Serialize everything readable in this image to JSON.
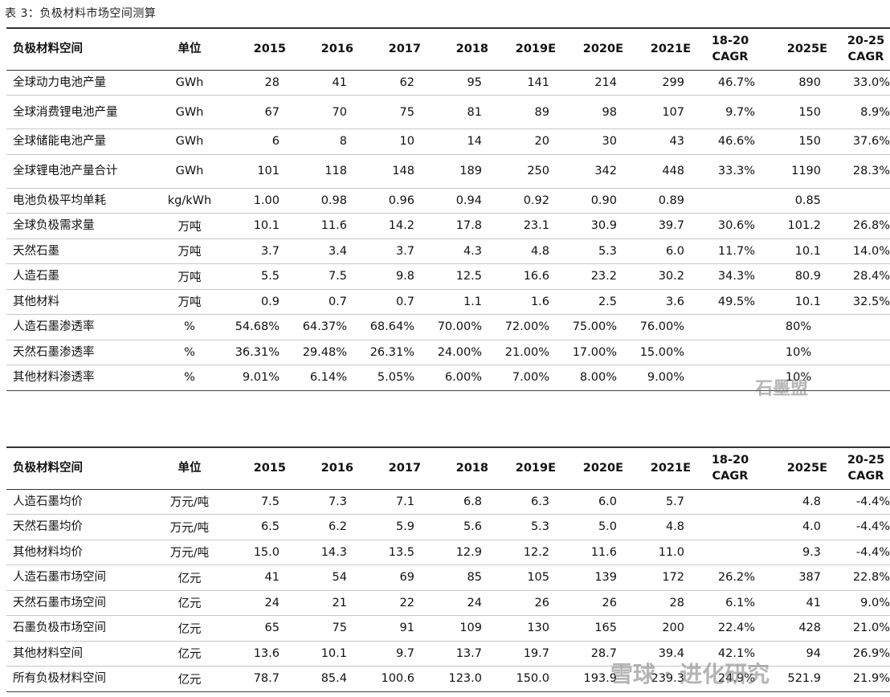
{
  "caption": "表 3：负极材料市场空间测算",
  "table1": {
    "headers": [
      "负极材料空间",
      "单位",
      "2015",
      "2016",
      "2017",
      "2018",
      "2019E",
      "2020E",
      "2021E",
      "18-20\nCAGR",
      "2025E",
      "20-25\nCAGR"
    ],
    "rows": [
      [
        "全球动力电池产量",
        "GWh",
        "28",
        "41",
        "62",
        "95",
        "141",
        "214",
        "299",
        "46.7%",
        "890",
        "33.0%"
      ],
      [
        "全球消费锂电池产量",
        "GWh",
        "67",
        "70",
        "75",
        "81",
        "89",
        "98",
        "107",
        "9.7%",
        "150",
        "8.9%"
      ],
      [
        "全球储能电池产量",
        "GWh",
        "6",
        "8",
        "10",
        "14",
        "20",
        "30",
        "43",
        "46.6%",
        "150",
        "37.6%"
      ],
      [
        "全球锂电池产量合计",
        "GWh",
        "101",
        "118",
        "148",
        "189",
        "250",
        "342",
        "448",
        "33.3%",
        "1190",
        "28.3%"
      ],
      [
        "电池负极平均单耗",
        "kg/kWh",
        "1.00",
        "0.98",
        "0.96",
        "0.94",
        "0.92",
        "0.90",
        "0.89",
        "",
        "0.85",
        ""
      ],
      [
        "全球负极需求量",
        "万吨",
        "10.1",
        "11.6",
        "14.2",
        "17.8",
        "23.1",
        "30.9",
        "39.7",
        "30.6%",
        "101.2",
        "26.8%"
      ],
      [
        "天然石墨",
        "万吨",
        "3.7",
        "3.4",
        "3.7",
        "4.3",
        "4.8",
        "5.3",
        "6.0",
        "11.7%",
        "10.1",
        "14.0%"
      ],
      [
        "人造石墨",
        "万吨",
        "5.5",
        "7.5",
        "9.8",
        "12.5",
        "16.6",
        "23.2",
        "30.2",
        "34.3%",
        "80.9",
        "28.4%"
      ],
      [
        "其他材料",
        "万吨",
        "0.9",
        "0.7",
        "0.7",
        "1.1",
        "1.6",
        "2.5",
        "3.6",
        "49.5%",
        "10.1",
        "32.5%"
      ],
      [
        "人造石墨渗透率",
        "%",
        "54.68%",
        "64.37%",
        "68.64%",
        "70.00%",
        "72.00%",
        "75.00%",
        "76.00%",
        "",
        "80%",
        ""
      ],
      [
        "天然石墨渗透率",
        "%",
        "36.31%",
        "29.48%",
        "26.31%",
        "24.00%",
        "21.00%",
        "17.00%",
        "15.00%",
        "",
        "10%",
        ""
      ],
      [
        "其他材料渗透率",
        "%",
        "9.01%",
        "6.14%",
        "5.05%",
        "6.00%",
        "7.00%",
        "8.00%",
        "9.00%",
        "",
        "10%",
        ""
      ]
    ]
  },
  "table2": {
    "headers": [
      "负极材料空间",
      "单位",
      "2015",
      "2016",
      "2017",
      "2018",
      "2019E",
      "2020E",
      "2021E",
      "18-20\nCAGR",
      "2025E",
      "20-25\nCAGR"
    ],
    "rows": [
      [
        "人造石墨均价",
        "万元/吨",
        "7.5",
        "7.3",
        "7.1",
        "6.8",
        "6.3",
        "6.0",
        "5.7",
        "",
        "4.8",
        "-4.4%"
      ],
      [
        "天然石墨均价",
        "万元/吨",
        "6.5",
        "6.2",
        "5.9",
        "5.6",
        "5.3",
        "5.0",
        "4.8",
        "",
        "4.0",
        "-4.4%"
      ],
      [
        "其他材料均价",
        "万元/吨",
        "15.0",
        "14.3",
        "13.5",
        "12.9",
        "12.2",
        "11.6",
        "11.0",
        "",
        "9.3",
        "-4.4%"
      ],
      [
        "人造石墨市场空间",
        "亿元",
        "41",
        "54",
        "69",
        "85",
        "105",
        "139",
        "172",
        "26.2%",
        "387",
        "22.8%"
      ],
      [
        "天然石墨市场空间",
        "亿元",
        "24",
        "21",
        "22",
        "24",
        "26",
        "26",
        "28",
        "6.1%",
        "41",
        "9.0%"
      ],
      [
        "石墨负极市场空间",
        "亿元",
        "65",
        "75",
        "91",
        "109",
        "130",
        "165",
        "200",
        "22.4%",
        "428",
        "21.0%"
      ],
      [
        "其他材料空间",
        "亿元",
        "13.6",
        "10.1",
        "9.7",
        "13.7",
        "19.7",
        "28.7",
        "39.4",
        "42.1%",
        "94",
        "26.9%"
      ],
      [
        "所有负极材料空间",
        "亿元",
        "78.7",
        "85.4",
        "100.6",
        "123.0",
        "150.0",
        "193.9",
        "239.3",
        "24.9%",
        "521.9",
        "21.9%"
      ]
    ]
  },
  "watermarks": [
    "石墨盟",
    "雪球 · 进化研究"
  ]
}
